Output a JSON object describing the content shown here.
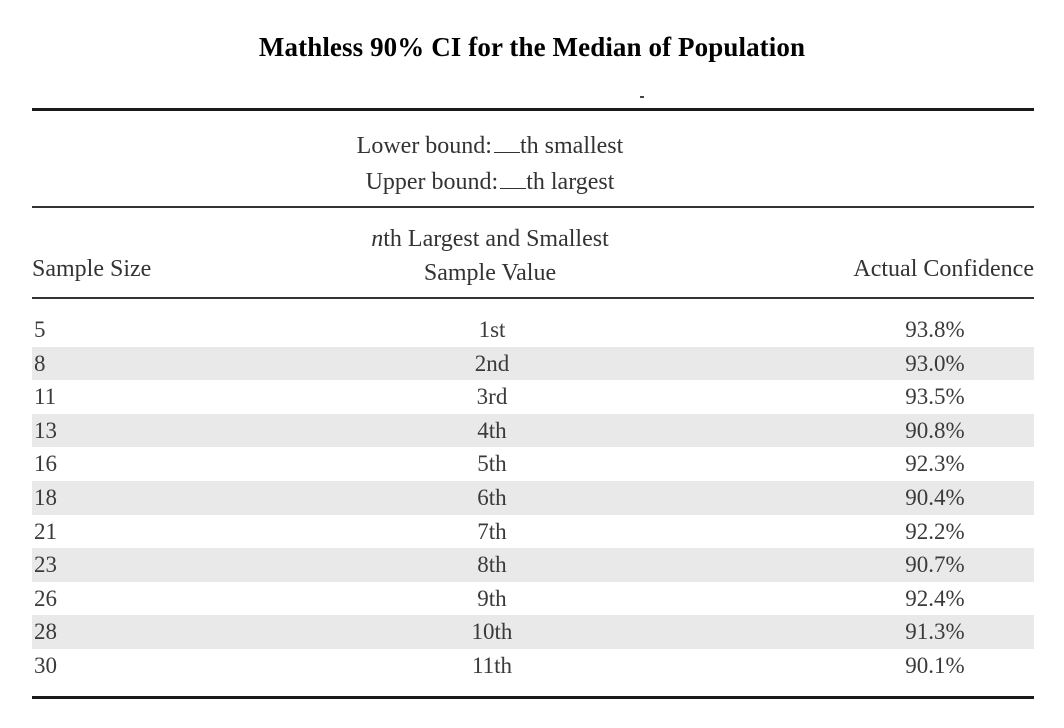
{
  "title": "Mathless 90% CI for the Median of Population",
  "bounds": {
    "lower_prefix": "Lower bound:",
    "lower_suffix": "th smallest",
    "upper_prefix": "Upper bound:",
    "upper_suffix": "th largest"
  },
  "headers": {
    "sample_size": "Sample Size",
    "nth_italic": "n",
    "nth_line1_rest": "th Largest and Smallest",
    "nth_line2": "Sample Value",
    "confidence": "Actual Confidence"
  },
  "rows": [
    {
      "size": "5",
      "nth": "1st",
      "confidence": "93.8%"
    },
    {
      "size": "8",
      "nth": "2nd",
      "confidence": "93.0%"
    },
    {
      "size": "11",
      "nth": "3rd",
      "confidence": "93.5%"
    },
    {
      "size": "13",
      "nth": "4th",
      "confidence": "90.8%"
    },
    {
      "size": "16",
      "nth": "5th",
      "confidence": "92.3%"
    },
    {
      "size": "18",
      "nth": "6th",
      "confidence": "90.4%"
    },
    {
      "size": "21",
      "nth": "7th",
      "confidence": "92.2%"
    },
    {
      "size": "23",
      "nth": "8th",
      "confidence": "90.7%"
    },
    {
      "size": "26",
      "nth": "9th",
      "confidence": "92.4%"
    },
    {
      "size": "28",
      "nth": "10th",
      "confidence": "91.3%"
    },
    {
      "size": "30",
      "nth": "11th",
      "confidence": "90.1%"
    }
  ]
}
